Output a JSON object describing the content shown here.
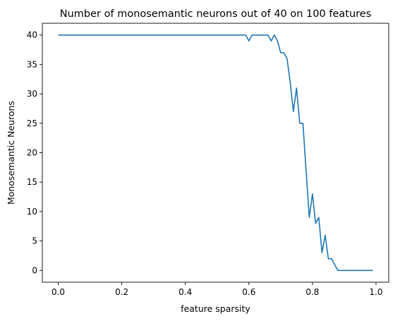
{
  "chart_data": {
    "type": "line",
    "title": "Number of monosemantic neurons out of 40 on 100 features",
    "xlabel": "feature sparsity",
    "ylabel": "Monosemantic Neurons",
    "xlim": [
      -0.05,
      1.04
    ],
    "ylim": [
      -2,
      42
    ],
    "xticks": [
      0.0,
      0.2,
      0.4,
      0.6,
      0.8,
      1.0
    ],
    "xtick_labels": [
      "0.0",
      "0.2",
      "0.4",
      "0.6",
      "0.8",
      "1.0"
    ],
    "yticks": [
      0,
      5,
      10,
      15,
      20,
      25,
      30,
      35,
      40
    ],
    "ytick_labels": [
      "0",
      "5",
      "10",
      "15",
      "20",
      "25",
      "30",
      "35",
      "40"
    ],
    "grid": false,
    "legend": "none",
    "line_color": "#1f77b4",
    "series": [
      {
        "x": [
          0.0,
          0.01,
          0.02,
          0.03,
          0.04,
          0.05,
          0.06,
          0.07,
          0.08,
          0.09,
          0.1,
          0.11,
          0.12,
          0.13,
          0.14,
          0.15,
          0.16,
          0.17,
          0.18,
          0.19,
          0.2,
          0.21,
          0.22,
          0.23,
          0.24,
          0.25,
          0.26,
          0.27,
          0.28,
          0.29,
          0.3,
          0.31,
          0.32,
          0.33,
          0.34,
          0.35,
          0.36,
          0.37,
          0.38,
          0.39,
          0.4,
          0.41,
          0.42,
          0.43,
          0.44,
          0.45,
          0.46,
          0.47,
          0.48,
          0.49,
          0.5,
          0.51,
          0.52,
          0.53,
          0.54,
          0.55,
          0.56,
          0.57,
          0.58,
          0.59,
          0.6,
          0.61,
          0.62,
          0.63,
          0.64,
          0.65,
          0.66,
          0.67,
          0.68,
          0.69,
          0.7,
          0.71,
          0.72,
          0.73,
          0.74,
          0.75,
          0.76,
          0.77,
          0.78,
          0.79,
          0.8,
          0.81,
          0.82,
          0.83,
          0.84,
          0.85,
          0.86,
          0.87,
          0.88,
          0.89,
          0.9,
          0.91,
          0.92,
          0.93,
          0.94,
          0.95,
          0.96,
          0.97,
          0.98,
          0.99
        ],
        "y": [
          40,
          40,
          40,
          40,
          40,
          40,
          40,
          40,
          40,
          40,
          40,
          40,
          40,
          40,
          40,
          40,
          40,
          40,
          40,
          40,
          40,
          40,
          40,
          40,
          40,
          40,
          40,
          40,
          40,
          40,
          40,
          40,
          40,
          40,
          40,
          40,
          40,
          40,
          40,
          40,
          40,
          40,
          40,
          40,
          40,
          40,
          40,
          40,
          40,
          40,
          40,
          40,
          40,
          40,
          40,
          40,
          40,
          40,
          40,
          40,
          39,
          40,
          40,
          40,
          40,
          40,
          40,
          39,
          40,
          39,
          37,
          37,
          36,
          32,
          27,
          31,
          25,
          25,
          17,
          9,
          13,
          8,
          9,
          3,
          6,
          2,
          2,
          1,
          0,
          0,
          0,
          0,
          0,
          0,
          0,
          0,
          0,
          0,
          0,
          0
        ]
      }
    ]
  }
}
